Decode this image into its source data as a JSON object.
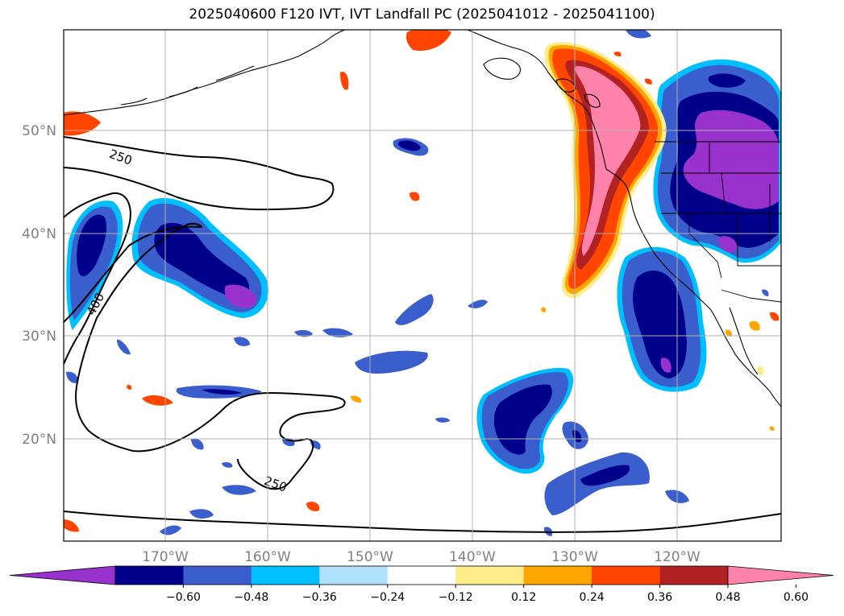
{
  "title": "2025040600 F120 IVT, IVT Landfall PC (2025041012 - 2025041100)",
  "axes": {
    "lat_labels": [
      "50°N",
      "40°N",
      "30°N",
      "20°N"
    ],
    "lon_labels": [
      "170°W",
      "160°W",
      "150°W",
      "140°W",
      "130°W",
      "120°W"
    ],
    "label_color": "#808080"
  },
  "contours": {
    "labels": [
      "250",
      "400",
      "250"
    ]
  },
  "colorbar": {
    "colors": [
      "#9932CC",
      "#00008B",
      "#3A5FCD",
      "#00BFFF",
      "#B0E2FF",
      "#FFFFFF",
      "#FFEC8B",
      "#FFA500",
      "#FF4500",
      "#B22222",
      "#FF82AB"
    ],
    "tick_labels": [
      "−0.60",
      "−0.48",
      "−0.36",
      "−0.24",
      "−0.12",
      "0.12",
      "0.24",
      "0.36",
      "0.48",
      "0.60"
    ]
  }
}
